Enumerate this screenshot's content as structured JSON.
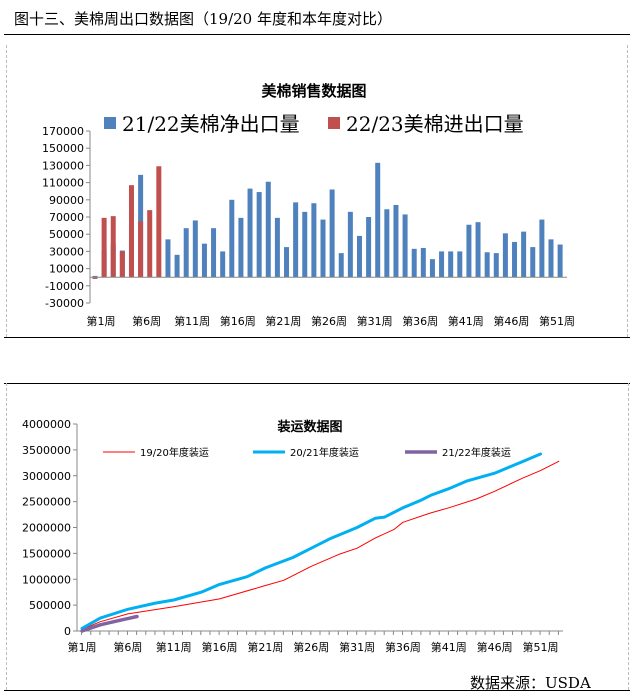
{
  "caption": "图十三、美棉周出口数据图（19/20 年度和本年度对比）",
  "source": "数据来源：USDA",
  "chart_data": [
    {
      "type": "bar",
      "title": "美棉销售数据图",
      "ylim": [
        -30000,
        170000
      ],
      "yticks": [
        "170000",
        "150000",
        "130000",
        "110000",
        "90000",
        "70000",
        "50000",
        "30000",
        "10000",
        "-10000",
        "-30000"
      ],
      "ytick_values": [
        170000,
        150000,
        130000,
        110000,
        90000,
        70000,
        50000,
        30000,
        10000,
        -10000,
        -30000
      ],
      "xtick_labels": [
        "第1周",
        "第6周",
        "第11周",
        "第16周",
        "第21周",
        "第26周",
        "第31周",
        "第36周",
        "第41周",
        "第46周",
        "第51周"
      ],
      "xtick_weeks": [
        1,
        6,
        11,
        16,
        21,
        26,
        31,
        36,
        41,
        46,
        51
      ],
      "legend_placement": "top",
      "series": [
        {
          "name": "21/22美棉净出口量",
          "color": "#4f81bd",
          "values": [
            1500,
            31000,
            38000,
            31000,
            45000,
            119000,
            null,
            null,
            44000,
            26000,
            57000,
            66000,
            39000,
            57000,
            30000,
            90000,
            69000,
            103000,
            99000,
            111000,
            69000,
            35000,
            87000,
            76000,
            86000,
            67000,
            102000,
            28000,
            76000,
            48000,
            70000,
            133000,
            79000,
            84000,
            73000,
            33000,
            34000,
            21000,
            30000,
            30000,
            30000,
            61000,
            64000,
            29000,
            28000,
            51000,
            41000,
            53000,
            35000,
            67000,
            44000,
            38000
          ]
        },
        {
          "name": "22/23美棉进出口量",
          "color": "#c0504d",
          "values": [
            -2000,
            69000,
            71000,
            30000,
            107000,
            65000,
            78000,
            129000
          ]
        }
      ]
    },
    {
      "type": "line",
      "title": "装运数据图",
      "ylim": [
        0,
        4000000
      ],
      "yticks": [
        "4000000",
        "3500000",
        "3000000",
        "2500000",
        "2000000",
        "1500000",
        "1000000",
        "500000",
        "0"
      ],
      "ytick_values": [
        4000000,
        3500000,
        3000000,
        2500000,
        2000000,
        1500000,
        1000000,
        500000,
        0
      ],
      "xtick_labels": [
        "第1周",
        "第6周",
        "第11周",
        "第16周",
        "第21周",
        "第26周",
        "第31周",
        "第36周",
        "第41周",
        "第46周",
        "第51周"
      ],
      "xtick_weeks": [
        1,
        6,
        11,
        16,
        21,
        26,
        31,
        36,
        41,
        46,
        51
      ],
      "legend_placement": "top",
      "series": [
        {
          "name": "19/20年度装运",
          "color": "#ff0000",
          "x": [
            1,
            3,
            6,
            11,
            16,
            21,
            23,
            26,
            29,
            31,
            33,
            35,
            36,
            39,
            41,
            44,
            46,
            49,
            51,
            53
          ],
          "y": [
            30000,
            180000,
            330000,
            470000,
            620000,
            880000,
            980000,
            1250000,
            1480000,
            1600000,
            1800000,
            1960000,
            2100000,
            2280000,
            2380000,
            2550000,
            2700000,
            2950000,
            3100000,
            3280000
          ]
        },
        {
          "name": "20/21年度装运",
          "color": "#00b0f0",
          "x": [
            1,
            3,
            6,
            9,
            11,
            14,
            16,
            19,
            21,
            24,
            26,
            28,
            31,
            33,
            34,
            36,
            38,
            39,
            41,
            43,
            46,
            49,
            51
          ],
          "y": [
            50000,
            250000,
            420000,
            540000,
            600000,
            750000,
            900000,
            1050000,
            1220000,
            1420000,
            1600000,
            1780000,
            2000000,
            2180000,
            2200000,
            2380000,
            2530000,
            2620000,
            2750000,
            2900000,
            3050000,
            3270000,
            3420000
          ]
        },
        {
          "name": "21/22年度装运",
          "color": "#8064a2",
          "x": [
            1,
            3,
            5,
            7
          ],
          "y": [
            0,
            120000,
            200000,
            280000
          ]
        }
      ]
    }
  ]
}
